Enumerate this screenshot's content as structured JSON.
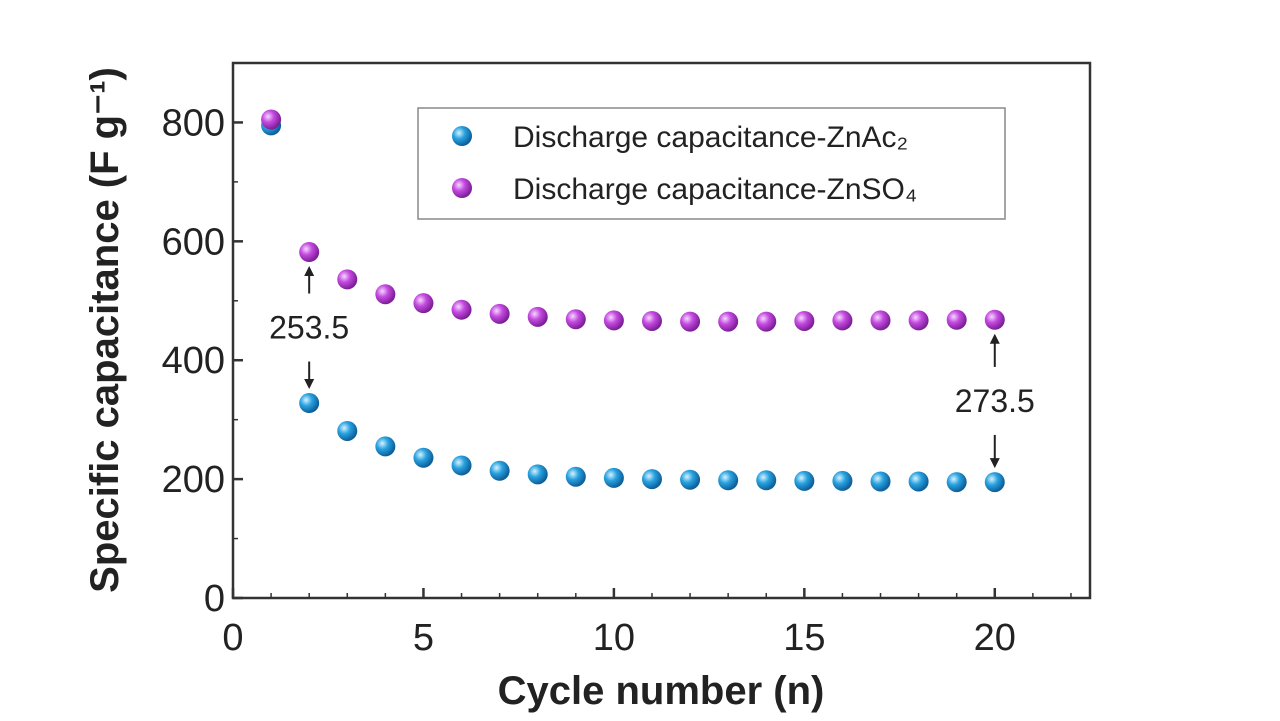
{
  "chart_data": {
    "type": "scatter",
    "xlabel": "Cycle number (n)",
    "ylabel": "Specific capacitance (F g⁻¹)",
    "xlim": [
      0,
      22.5
    ],
    "ylim": [
      0,
      900
    ],
    "x_ticks": [
      0,
      5,
      10,
      15,
      20
    ],
    "y_ticks": [
      0,
      200,
      400,
      600,
      800
    ],
    "grid": false,
    "legend_position": "top-right",
    "x": [
      1,
      2,
      3,
      4,
      5,
      6,
      7,
      8,
      9,
      10,
      11,
      12,
      13,
      14,
      15,
      16,
      17,
      18,
      19,
      20
    ],
    "series": [
      {
        "name": "Discharge capacitance-ZnAc₂",
        "color": "#29a3e0",
        "values": [
          795,
          328,
          281,
          255,
          236,
          223,
          214,
          208,
          204,
          202,
          200,
          199,
          198,
          198,
          197,
          197,
          196,
          196,
          195,
          195
        ]
      },
      {
        "name": "Discharge capacitance-ZnSO₄",
        "color": "#c44be0",
        "values": [
          805,
          582,
          536,
          511,
          496,
          485,
          478,
          473,
          469,
          467,
          466,
          465,
          465,
          465,
          466,
          467,
          467,
          467,
          468,
          468
        ]
      }
    ],
    "annotations": [
      {
        "text": "253.5",
        "x": 2
      },
      {
        "text": "273.5",
        "x": 20
      }
    ]
  }
}
